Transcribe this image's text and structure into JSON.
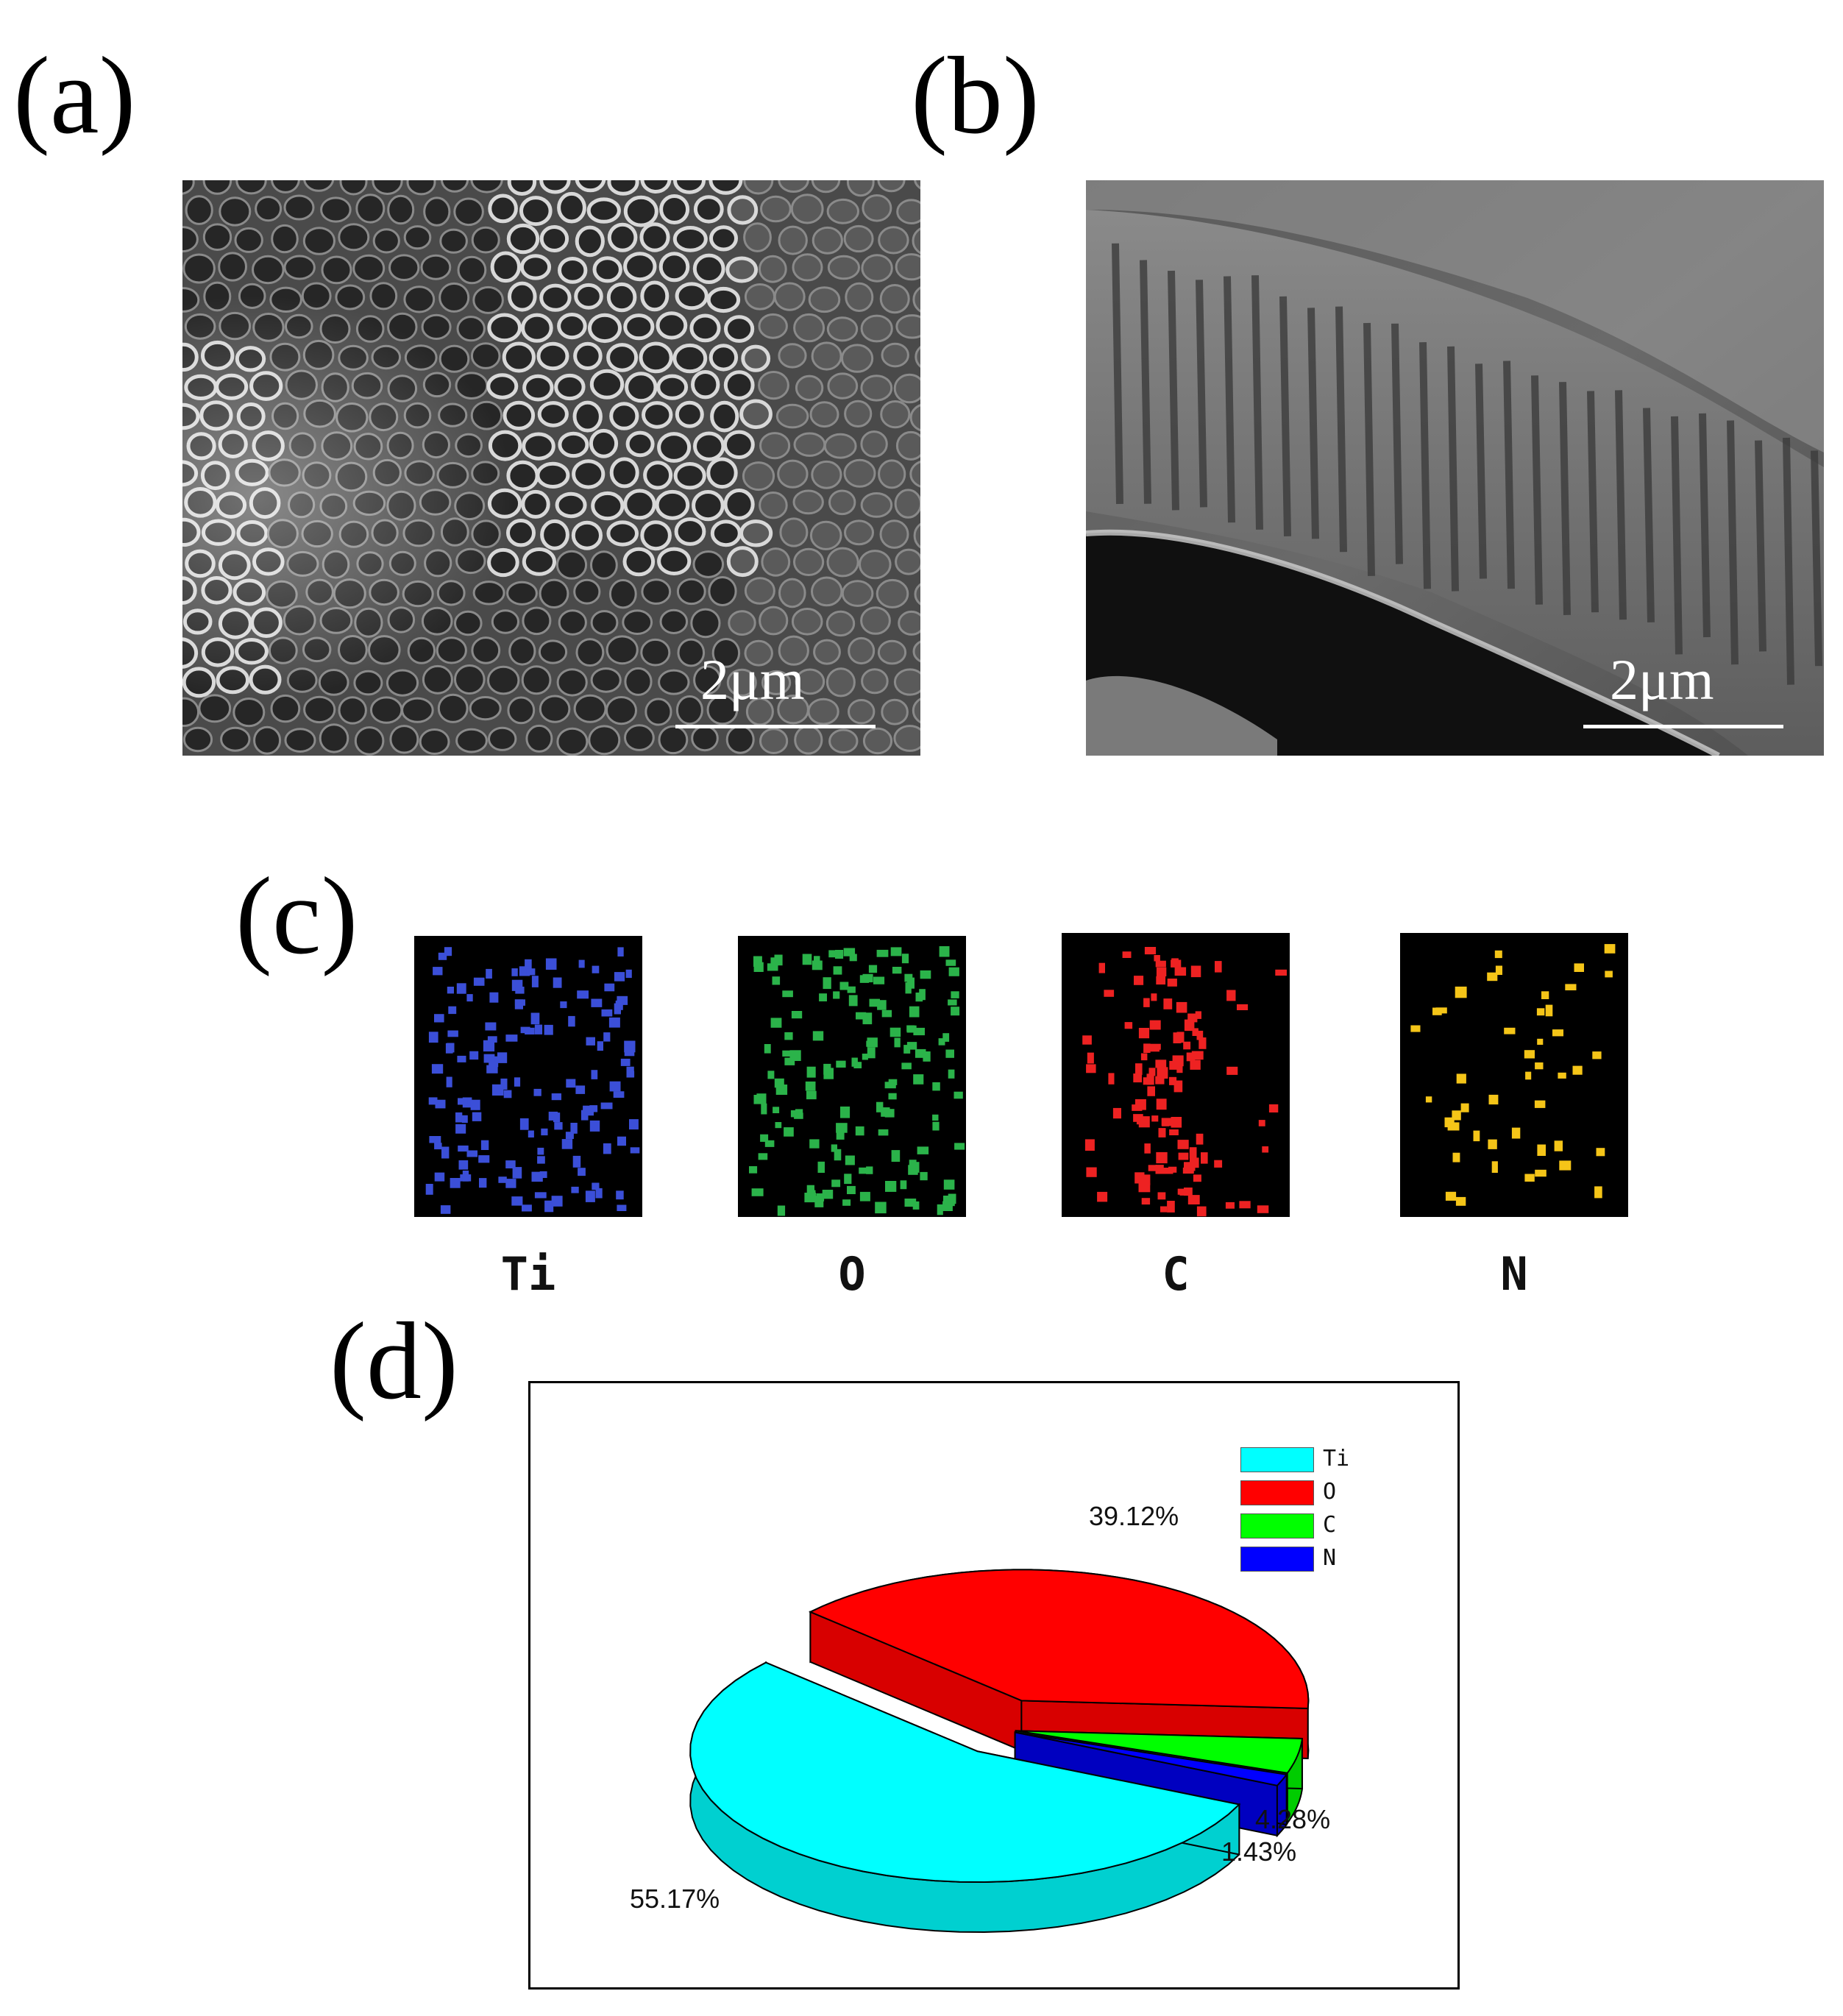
{
  "panels": {
    "a": {
      "label": "(a)",
      "scale_bar": "2μm"
    },
    "b": {
      "label": "(b)",
      "scale_bar": "2μm"
    },
    "c": {
      "label": "(c)"
    },
    "d": {
      "label": "(d)"
    }
  },
  "element_maps": [
    {
      "element": "Ti",
      "color": "#3b4fd8"
    },
    {
      "element": "O",
      "color": "#2bb34a"
    },
    {
      "element": "C",
      "color": "#ee2222"
    },
    {
      "element": "N",
      "color": "#f5c518"
    }
  ],
  "chart_data": {
    "type": "pie",
    "title": "",
    "categories": [
      "Ti",
      "O",
      "C",
      "N"
    ],
    "values": [
      55.17,
      39.12,
      4.28,
      1.43
    ],
    "labels": [
      "55.17%",
      "39.12%",
      "4.28%",
      "1.43%"
    ],
    "colors": [
      "#00ffff",
      "#ff0000",
      "#00ff00",
      "#0000ff"
    ],
    "style": "3d-exploded",
    "legend": "top-right"
  }
}
